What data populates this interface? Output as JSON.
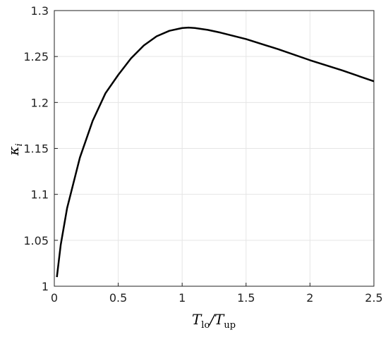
{
  "chart_data": {
    "type": "line",
    "xlabel": [
      "T",
      "lo",
      "/T",
      "up"
    ],
    "ylabel": [
      "κ",
      "i"
    ],
    "x": [
      0.02,
      0.05,
      0.1,
      0.2,
      0.3,
      0.4,
      0.5,
      0.6,
      0.7,
      0.8,
      0.9,
      1.0,
      1.05,
      1.1,
      1.2,
      1.3,
      1.5,
      1.75,
      2.0,
      2.25,
      2.5
    ],
    "series": [
      {
        "color": "#000000",
        "values": [
          1.01,
          1.045,
          1.085,
          1.14,
          1.18,
          1.21,
          1.23,
          1.248,
          1.262,
          1.272,
          1.278,
          1.281,
          1.2815,
          1.281,
          1.279,
          1.276,
          1.269,
          1.258,
          1.246,
          1.235,
          1.223
        ]
      }
    ],
    "xlim": [
      0,
      2.5
    ],
    "xticks": [
      0,
      0.5,
      1,
      1.5,
      2,
      2.5
    ],
    "ylim": [
      1,
      1.3
    ],
    "yticks": [
      1,
      1.05,
      1.1,
      1.15,
      1.2,
      1.25,
      1.3
    ],
    "grid": true
  }
}
